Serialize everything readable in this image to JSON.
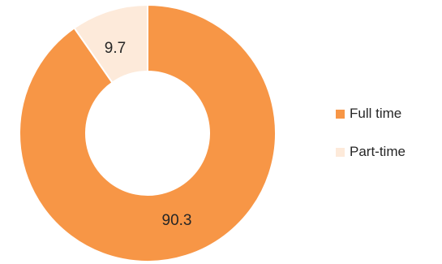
{
  "chart_data": {
    "type": "pie",
    "variant": "donut",
    "legend_position": "right",
    "series": [
      {
        "name": "Full time",
        "value": 90.3,
        "label": "90.3",
        "color": "#F79646"
      },
      {
        "name": "Part-time",
        "value": 9.7,
        "label": "9.7",
        "color": "#FDEADA"
      }
    ]
  }
}
